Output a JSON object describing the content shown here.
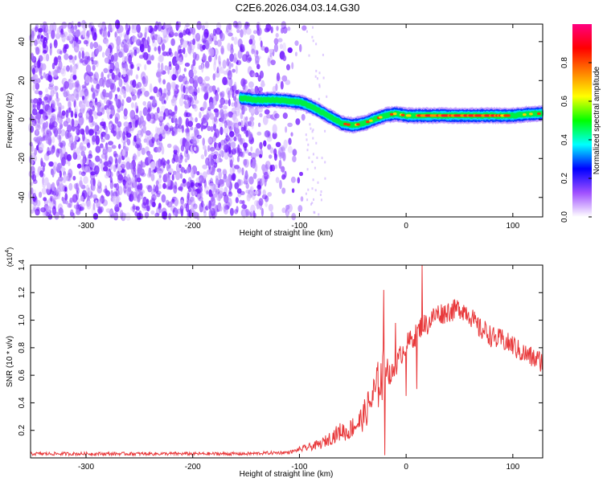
{
  "title": "C2E6.2026.034.03.14.G30",
  "chart_data": [
    {
      "type": "heatmap",
      "title": "C2E6.2026.034.03.14.G30",
      "xlabel": "Height of straight line (km)",
      "ylabel": "Frequency (Hz)",
      "xlim": [
        -352,
        128
      ],
      "ylim": [
        -50,
        49
      ],
      "xticks": [
        -300,
        -200,
        -100,
        0,
        100
      ],
      "yticks": [
        -40,
        -20,
        0,
        20,
        40
      ],
      "colorbar": {
        "label": "Normalized spectral amplitude",
        "ticks": [
          "0.0",
          "0.2",
          "0.4",
          "0.6",
          "0.8"
        ],
        "range": [
          0,
          1
        ],
        "colors": [
          "#ffffff",
          "#a050ff",
          "#0000ff",
          "#00ffff",
          "#00ff00",
          "#ffff00",
          "#ff8000",
          "#ff0000",
          "#ff0080"
        ]
      },
      "noise_region_x": [
        -352,
        -95
      ],
      "ridge": {
        "x": [
          -155,
          -140,
          -120,
          -100,
          -90,
          -80,
          -70,
          -60,
          -50,
          -40,
          -30,
          -20,
          -10,
          0,
          20,
          40,
          60,
          80,
          100,
          120,
          128
        ],
        "y": [
          11,
          10,
          10,
          9,
          7,
          4,
          1,
          -2,
          -3,
          -2,
          0,
          2,
          3,
          2,
          2,
          2,
          2,
          2,
          2,
          3,
          3
        ]
      }
    },
    {
      "type": "line",
      "xlabel": "Height of straight line (km)",
      "ylabel": "SNR (10 * v/v)",
      "ylabel_multiplier": "(x10",
      "ylabel_multiplier_exp": "4",
      "ylabel_multiplier_close": ")",
      "xlim": [
        -352,
        128
      ],
      "ylim": [
        0,
        1.4
      ],
      "xticks": [
        -300,
        -200,
        -100,
        0,
        100
      ],
      "yticks": [
        "0.2",
        "0.4",
        "0.6",
        "0.8",
        "1.0",
        "1.2",
        "1.4"
      ],
      "series": [
        {
          "color": "#e8383a",
          "x": [
            -352,
            -300,
            -250,
            -200,
            -150,
            -110,
            -95,
            -80,
            -70,
            -60,
            -55,
            -50,
            -45,
            -40,
            -35,
            -30,
            -25,
            -21,
            -18,
            -15,
            -10,
            -5,
            0,
            5,
            10,
            15,
            20,
            25,
            30,
            35,
            40,
            45,
            50,
            55,
            60,
            65,
            70,
            75,
            80,
            85,
            90,
            95,
            100,
            105,
            110,
            115,
            120,
            128
          ],
          "y": [
            0.03,
            0.03,
            0.03,
            0.03,
            0.03,
            0.04,
            0.07,
            0.1,
            0.15,
            0.2,
            0.18,
            0.23,
            0.25,
            0.3,
            0.38,
            0.46,
            0.55,
            0.6,
            0.68,
            0.58,
            0.66,
            0.75,
            0.82,
            0.86,
            0.9,
            0.97,
            0.97,
            1.02,
            1.05,
            1.05,
            1.07,
            1.07,
            1.09,
            1.07,
            1.04,
            0.97,
            0.93,
            0.92,
            0.88,
            0.86,
            0.86,
            0.83,
            0.82,
            0.78,
            0.76,
            0.74,
            0.72,
            0.7
          ],
          "spikes": [
            [
              -21,
              1.22
            ],
            [
              -25,
              0.48
            ],
            [
              -20,
              0.02
            ],
            [
              15,
              1.42
            ],
            [
              -10,
              0.98
            ],
            [
              0,
              0.45
            ],
            [
              10,
              0.5
            ]
          ]
        }
      ]
    }
  ]
}
